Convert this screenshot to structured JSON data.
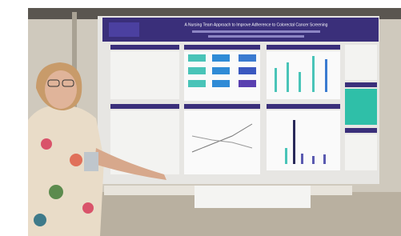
{
  "poster": {
    "title": "A Nursing Team Approach to Improve Adherence to Colorectal Cancer Screening"
  }
}
